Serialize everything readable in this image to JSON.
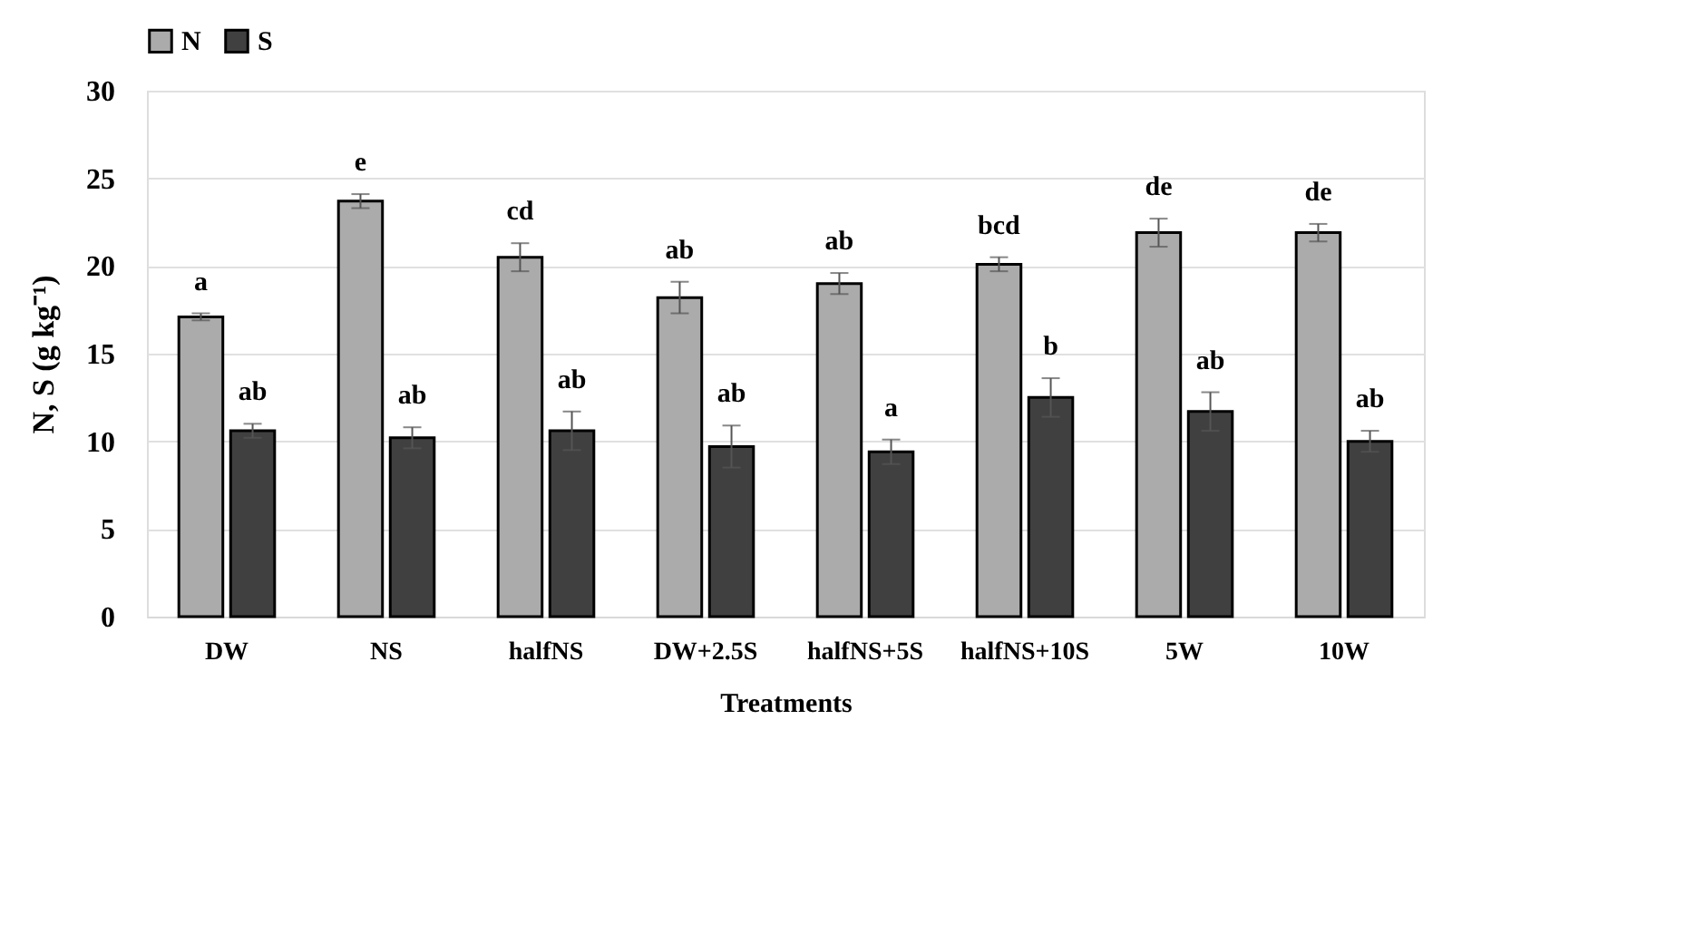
{
  "chart_data": {
    "type": "bar",
    "xlabel": "Treatments",
    "ylabel": "N, S (g kg⁻¹)",
    "categories": [
      "DW",
      "NS",
      "halfNS",
      "DW+2.5S",
      "halfNS+5S",
      "halfNS+10S",
      "5W",
      "10W"
    ],
    "series": [
      {
        "name": "N",
        "color": "#ababab",
        "values": [
          17.1,
          23.7,
          20.5,
          18.2,
          19.0,
          20.1,
          21.9,
          21.9
        ],
        "errors": [
          0.2,
          0.4,
          0.8,
          0.9,
          0.6,
          0.4,
          0.8,
          0.5
        ],
        "value_labels": [
          "a",
          "e",
          "cd",
          "ab",
          "ab",
          "bcd",
          "de",
          "de"
        ]
      },
      {
        "name": "S",
        "color": "#404040",
        "values": [
          10.6,
          10.2,
          10.6,
          9.7,
          9.4,
          12.5,
          11.7,
          10.0
        ],
        "errors": [
          0.4,
          0.6,
          1.1,
          1.2,
          0.7,
          1.1,
          1.1,
          0.6
        ],
        "value_labels": [
          "ab",
          "ab",
          "ab",
          "ab",
          "a",
          "b",
          "ab",
          "ab"
        ]
      }
    ],
    "ylim": [
      0,
      30
    ],
    "yticks": [
      0,
      5,
      10,
      15,
      20,
      25,
      30
    ],
    "grid": "y",
    "legend": "top"
  }
}
